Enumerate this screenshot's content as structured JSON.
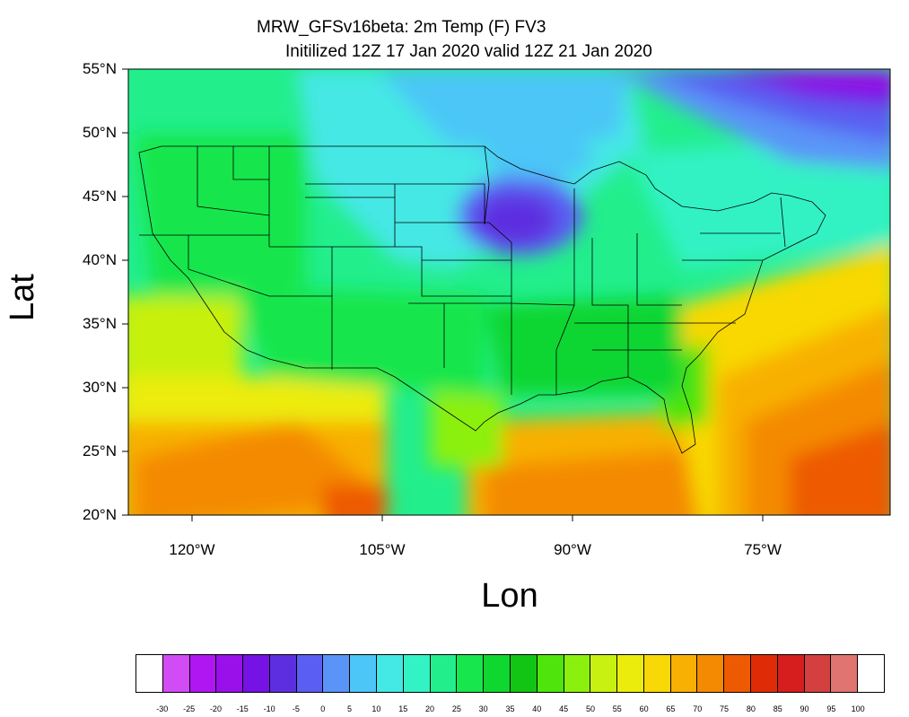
{
  "title": {
    "line1": "MRW_GFSv16beta: 2m Temp (F) FV3",
    "line2": "Initilized 12Z 17 Jan 2020 valid 12Z 21 Jan 2020"
  },
  "axes": {
    "ylabel": "Lat",
    "xlabel": "Lon",
    "lat_ticks": [
      "55°N",
      "50°N",
      "45°N",
      "40°N",
      "35°N",
      "30°N",
      "25°N",
      "20°N"
    ],
    "lon_ticks": [
      "120°W",
      "105°W",
      "90°W",
      "75°W"
    ]
  },
  "colorbar": {
    "labels": [
      "-30",
      "-25",
      "-20",
      "-15",
      "-10",
      "-5",
      "0",
      "5",
      "10",
      "15",
      "20",
      "25",
      "30",
      "35",
      "40",
      "45",
      "50",
      "55",
      "60",
      "65",
      "70",
      "75",
      "80",
      "85",
      "90",
      "95",
      "100"
    ],
    "colors": [
      "#ffffff",
      "#d24cf5",
      "#b016f2",
      "#9a10ea",
      "#7612e4",
      "#5d2ee0",
      "#5a5ef2",
      "#5a94f8",
      "#4cc6f7",
      "#44e8e4",
      "#33f2c4",
      "#22ee8c",
      "#17e64c",
      "#10d630",
      "#12c414",
      "#4ee40c",
      "#8cf00e",
      "#c8f010",
      "#ecec0c",
      "#f8d806",
      "#f8b002",
      "#f48a02",
      "#ee5a02",
      "#e02c06",
      "#d61e1e",
      "#d44040",
      "#e07470",
      "#ffffff"
    ]
  },
  "map": {
    "states_visible": true,
    "coastlines_visible": true
  }
}
